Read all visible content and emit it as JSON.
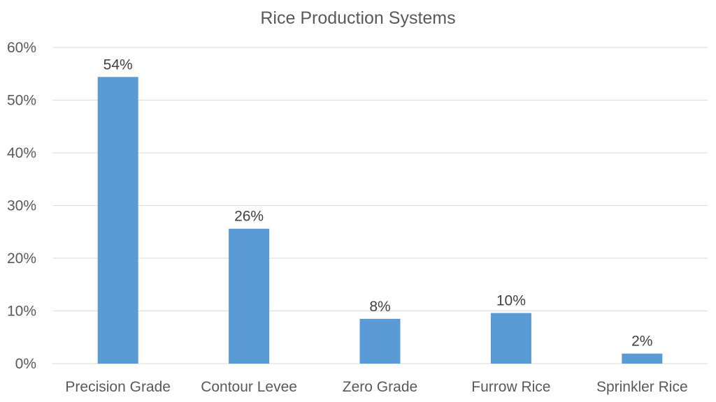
{
  "chart_data": {
    "type": "bar",
    "title": "Rice Production Systems",
    "categories": [
      "Precision Grade",
      "Contour Levee",
      "Zero Grade",
      "Furrow Rice",
      "Sprinkler Rice"
    ],
    "values": [
      54.4,
      25.6,
      8.5,
      9.6,
      1.9
    ],
    "data_labels": [
      "54%",
      "26%",
      "8%",
      "10%",
      "2%"
    ],
    "xlabel": "",
    "ylabel": "",
    "ylim": [
      0,
      60
    ],
    "yticks": [
      "0%",
      "10%",
      "20%",
      "30%",
      "40%",
      "50%",
      "60%"
    ],
    "grid": true,
    "legend": "none",
    "bar_color": "#5B9BD5"
  }
}
